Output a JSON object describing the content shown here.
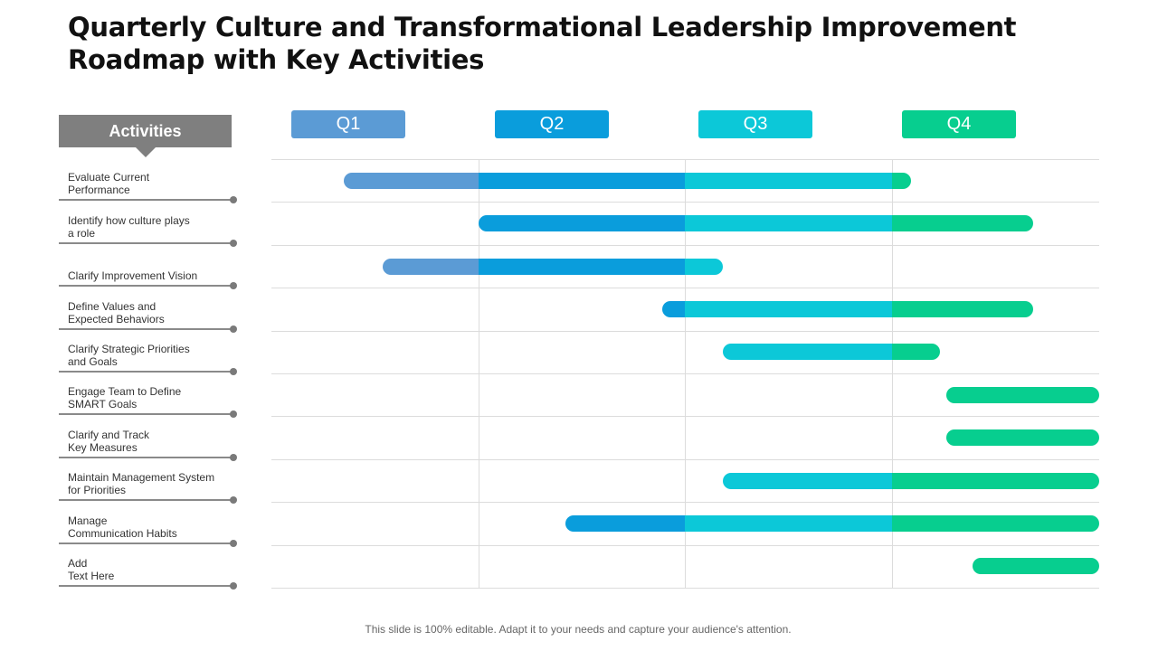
{
  "title": "Quarterly Culture and Transformational Leadership Improvement Roadmap with Key Activities",
  "activities_header": "Activities",
  "activities": [
    "Evaluate Current\nPerformance",
    "Identify how culture plays\na role",
    "Clarify Improvement Vision",
    "Define Values and\nExpected Behaviors",
    "Clarify Strategic Priorities\nand Goals",
    "Engage Team to Define\nSMART Goals",
    "Clarify and Track\nKey Measures",
    "Maintain Management System\nfor Priorities",
    "Manage\nCommunication Habits",
    "Add\nText Here"
  ],
  "quarters": [
    {
      "label": "Q1",
      "color": "#5b9bd5"
    },
    {
      "label": "Q2",
      "color": "#0a9ddc"
    },
    {
      "label": "Q3",
      "color": "#0cc8d8"
    },
    {
      "label": "Q4",
      "color": "#07ce8f"
    }
  ],
  "chart_data": {
    "type": "gantt",
    "quarters": [
      "Q1",
      "Q2",
      "Q3",
      "Q4"
    ],
    "tasks": [
      {
        "activity": "Evaluate Current Performance",
        "start": 0.35,
        "end": 3.09
      },
      {
        "activity": "Identify how culture plays a role",
        "start": 1.0,
        "end": 3.68
      },
      {
        "activity": "Clarify Improvement Vision",
        "start": 0.54,
        "end": 2.18
      },
      {
        "activity": "Define Values and Expected Behaviors",
        "start": 1.89,
        "end": 3.68
      },
      {
        "activity": "Clarify Strategic Priorities and Goals",
        "start": 2.18,
        "end": 3.23
      },
      {
        "activity": "Engage Team to Define SMART Goals",
        "start": 3.26,
        "end": 4.0
      },
      {
        "activity": "Clarify and Track Key Measures",
        "start": 3.26,
        "end": 4.0
      },
      {
        "activity": "Maintain Management System for Priorities",
        "start": 2.18,
        "end": 4.0
      },
      {
        "activity": "Manage Communication Habits",
        "start": 1.42,
        "end": 4.0
      },
      {
        "activity": "Add Text Here",
        "start": 3.39,
        "end": 4.0
      }
    ]
  },
  "footer": "This slide is 100% editable. Adapt it to your needs and capture your audience's attention."
}
